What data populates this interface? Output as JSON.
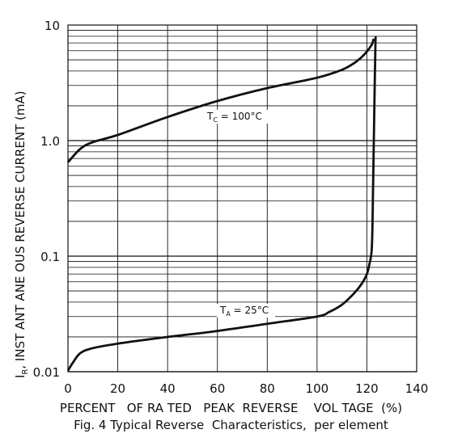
{
  "chart_data": {
    "type": "line",
    "title": "",
    "xlabel": "PERCENT   OF RA TED   PEAK  REVERSE    VOL TAGE  (%)",
    "ylabel_parts": [
      "I",
      "R",
      ", INST ANT ANE OUS  REVERSE   CURRENT   (mA)"
    ],
    "caption": "Fig. 4 Typical Reverse  Characteristics,  per element",
    "x_ticks": [
      "0",
      "20",
      "40",
      "60",
      "80",
      "100",
      "120",
      "140"
    ],
    "y_ticks": [
      "0.01",
      "0.1",
      "1.0",
      "10"
    ],
    "y_tick_values": [
      0.01,
      0.1,
      1,
      10
    ],
    "xlim": [
      0,
      140
    ],
    "ylim": [
      0.01,
      10
    ],
    "yscale": "log",
    "grid": true,
    "series": [
      {
        "name_main": "T",
        "name_sub": "C",
        "name_rest": " = 100°C",
        "x": [
          0,
          5,
          10,
          20,
          40,
          60,
          80,
          100,
          110,
          115,
          118,
          120,
          121,
          122,
          122.8
        ],
        "y": [
          0.65,
          0.85,
          0.97,
          1.12,
          1.6,
          2.2,
          2.85,
          3.5,
          4.1,
          4.7,
          5.3,
          5.9,
          6.3,
          6.8,
          7.6
        ]
      },
      {
        "name_main": "T",
        "name_sub": "A",
        "name_rest": " = 25°C",
        "x": [
          0,
          2,
          5,
          10,
          20,
          40,
          60,
          80,
          100,
          105,
          110,
          115,
          118,
          120,
          121,
          122,
          122.5,
          123,
          123.5
        ],
        "y": [
          0.0102,
          0.012,
          0.0145,
          0.016,
          0.0175,
          0.02,
          0.0225,
          0.026,
          0.03,
          0.033,
          0.038,
          0.048,
          0.058,
          0.07,
          0.085,
          0.12,
          0.4,
          2.0,
          8.0
        ]
      }
    ]
  }
}
